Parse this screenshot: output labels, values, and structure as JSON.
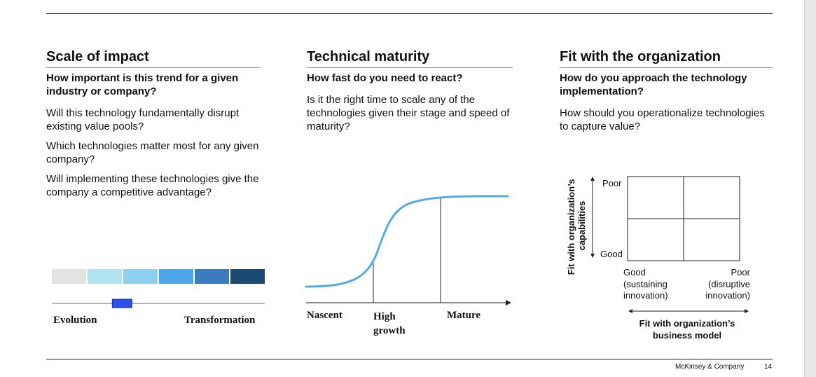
{
  "columns": {
    "impact": {
      "title": "Scale of impact",
      "question": "How important is this trend for a given industry or company?",
      "points": [
        "Will this technology fundamentally disrupt existing value pools?",
        "Which technologies matter most for any given company?",
        "Will implementing these technologies give the company a competitive advantage?"
      ],
      "scale_left": "Evolution",
      "scale_right": "Transformation",
      "scale_position": 0.33,
      "scale_colors": [
        "#e3e3e3",
        "#b2e3f1",
        "#8dd0f0",
        "#4da6ea",
        "#3a7cbd",
        "#1d4a72"
      ]
    },
    "maturity": {
      "title": "Technical maturity",
      "question": "How fast do you need to react?",
      "points": [
        "Is it the right time to scale any of the technologies given their stage and speed of maturity?"
      ],
      "stages": {
        "nascent": "Nascent",
        "high_growth": "High growth",
        "mature": "Mature"
      },
      "curve_color": "#55abe0"
    },
    "fit": {
      "title": "Fit with the organization",
      "question": "How do you approach the technology implementation?",
      "points": [
        "How should you operationalize technologies to capture value?"
      ],
      "y_axis_label": "Fit with organization’s capabilities",
      "y_top": "Poor",
      "y_bottom": "Good",
      "x_left": "Good (sustaining innovation)",
      "x_right": "Poor (disruptive innovation)",
      "x_axis_label": "Fit with organization’s business model"
    }
  },
  "footer": {
    "brand": "McKinsey & Company",
    "page": "14"
  }
}
